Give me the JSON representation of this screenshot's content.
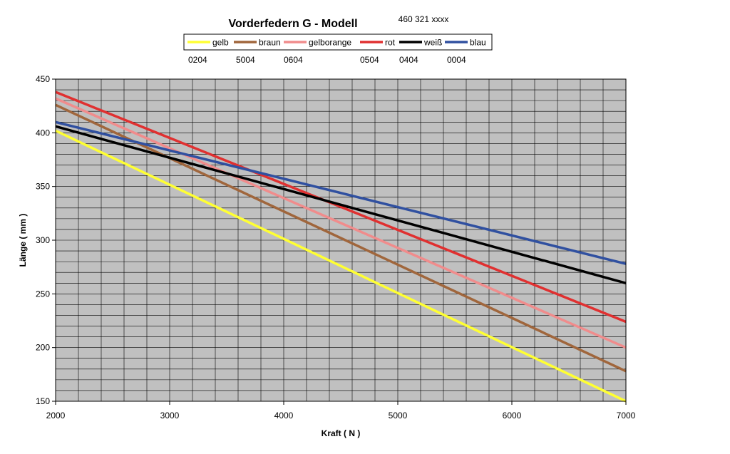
{
  "chart_data": {
    "type": "line",
    "title": "Vorderfedern G - Modell",
    "subtitle": "460 321 xxxx",
    "xlabel": "Kraft ( N )",
    "ylabel": "Länge ( mm )",
    "xlim": [
      2000,
      7000
    ],
    "ylim": [
      150,
      450
    ],
    "x_ticks": [
      2000,
      3000,
      4000,
      5000,
      6000,
      7000
    ],
    "y_ticks": [
      150,
      200,
      250,
      300,
      350,
      400,
      450
    ],
    "grid": true,
    "plot_background": "#c0c0c0",
    "grid_color": "#000000",
    "legend_position": "top",
    "series": [
      {
        "name": "gelb",
        "code": "0204",
        "color": "#ffff33",
        "x": [
          2000,
          7000
        ],
        "y": [
          402,
          150
        ]
      },
      {
        "name": "braun",
        "code": "5004",
        "color": "#a0663c",
        "x": [
          2000,
          7000
        ],
        "y": [
          426,
          178
        ]
      },
      {
        "name": "gelborange",
        "code": "0604",
        "color": "#f08c8c",
        "x": [
          2000,
          7000
        ],
        "y": [
          432,
          200
        ]
      },
      {
        "name": "rot",
        "code": "0504",
        "color": "#e03030",
        "x": [
          2000,
          7000
        ],
        "y": [
          438,
          224
        ]
      },
      {
        "name": "weiß",
        "code": "0404",
        "color": "#000000",
        "x": [
          2000,
          7000
        ],
        "y": [
          406,
          260
        ]
      },
      {
        "name": "blau",
        "code": "0004",
        "color": "#3050a0",
        "x": [
          2000,
          7000
        ],
        "y": [
          410,
          278
        ]
      }
    ]
  }
}
